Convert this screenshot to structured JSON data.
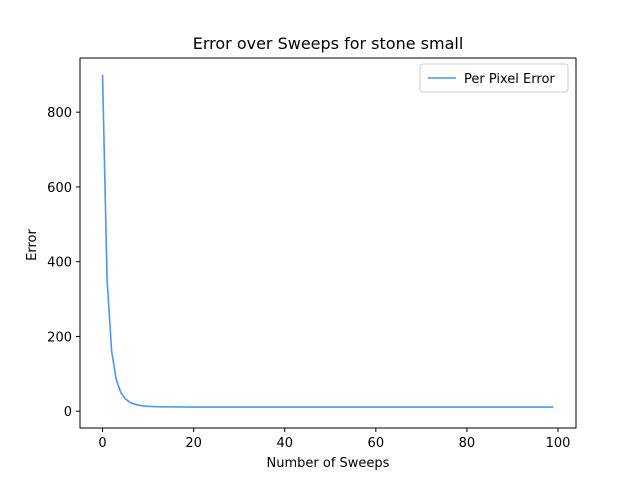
{
  "chart_data": {
    "type": "line",
    "title": "Error over Sweeps for stone small",
    "xlabel": "Number of Sweeps",
    "ylabel": "Error",
    "xlim": [
      -4.95,
      103.95
    ],
    "ylim": [
      -45,
      945
    ],
    "xticks": [
      0,
      20,
      40,
      60,
      80,
      100
    ],
    "yticks": [
      0,
      200,
      400,
      600,
      800
    ],
    "grid": false,
    "legend_position": "top-right",
    "series": [
      {
        "name": "Per Pixel Error",
        "color": "#4c96f0",
        "x": [
          0,
          1,
          2,
          3,
          4,
          5,
          6,
          7,
          8,
          9,
          10,
          11,
          12,
          13,
          14,
          15,
          16,
          17,
          18,
          19,
          20,
          25,
          30,
          40,
          50,
          60,
          70,
          80,
          90,
          99
        ],
        "y": [
          900,
          350,
          160,
          85,
          50,
          33,
          24,
          19,
          16,
          14,
          13,
          12.5,
          12,
          11.8,
          11.6,
          11.5,
          11.4,
          11.3,
          11.2,
          11.1,
          11,
          11,
          11,
          11,
          11,
          11,
          11,
          11,
          11,
          11
        ]
      }
    ]
  }
}
